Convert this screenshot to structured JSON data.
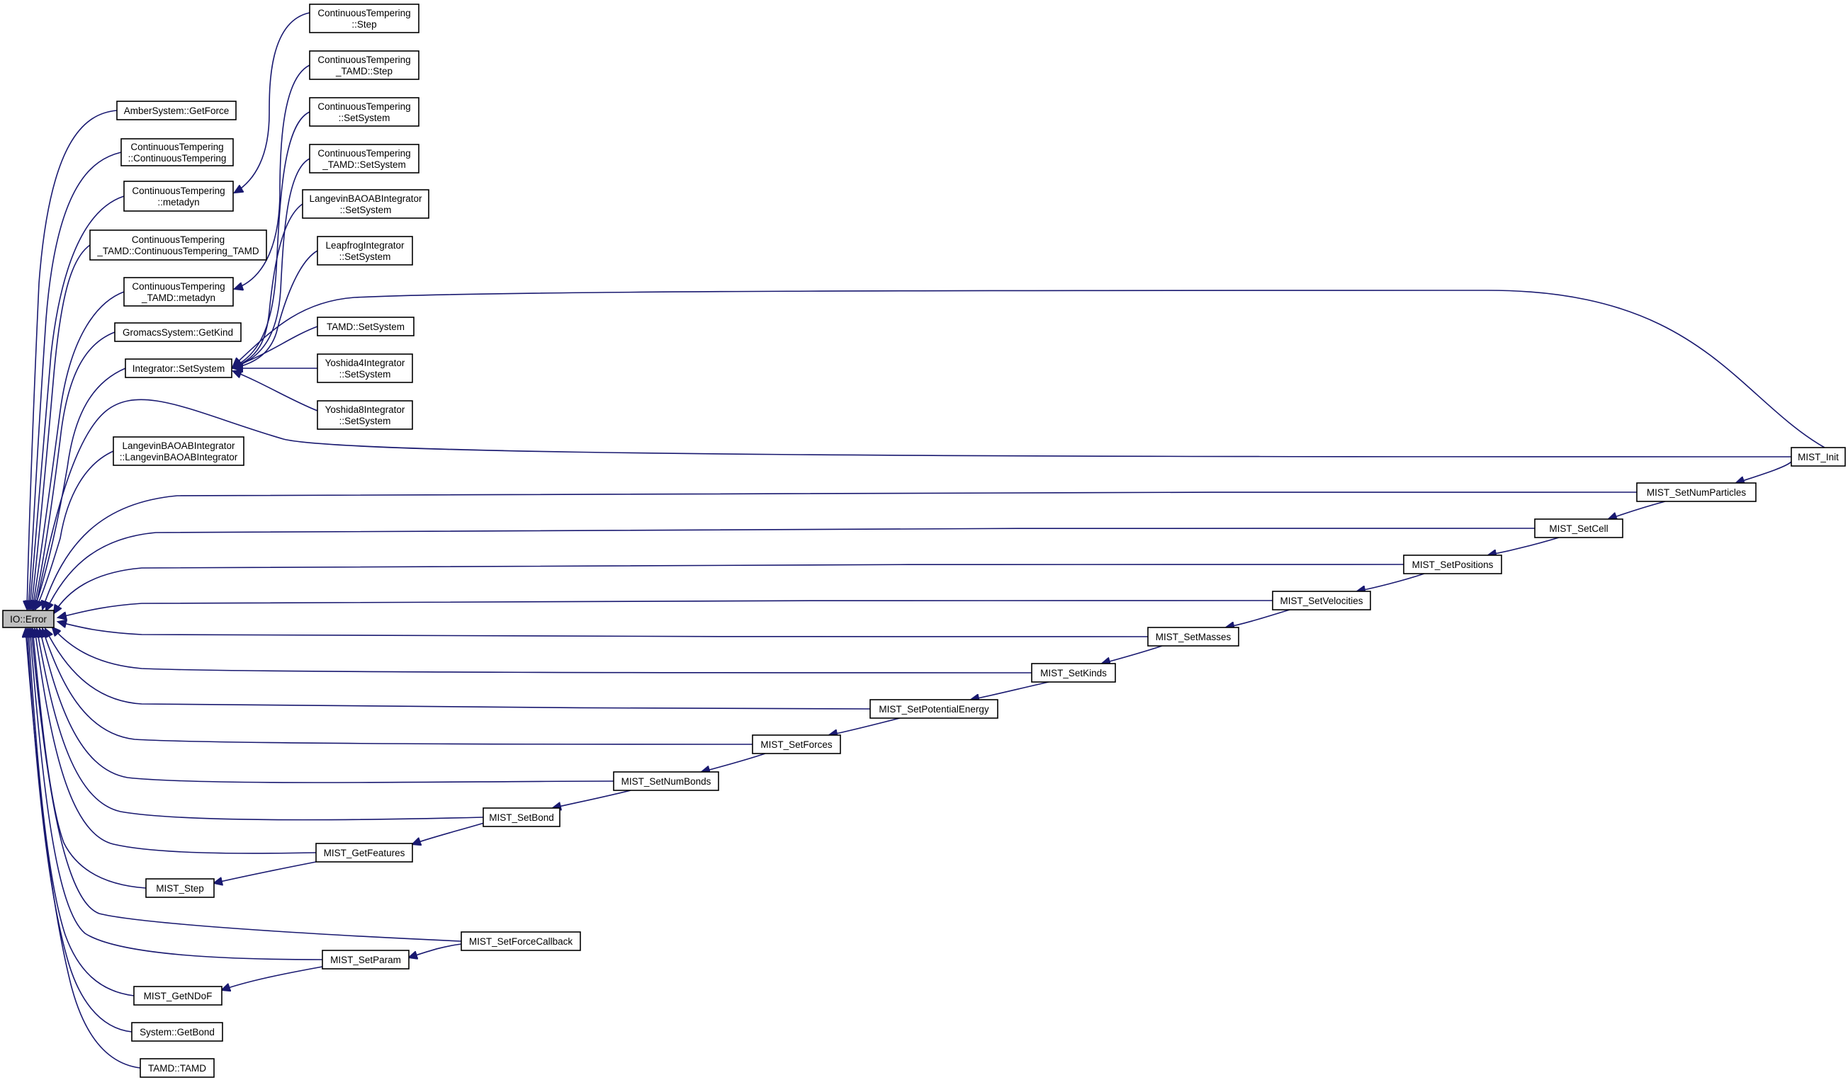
{
  "graph": {
    "edge_color": "#191970",
    "root_fill": "#bfbfbf",
    "node_fill": "#ffffff",
    "nodes": [
      {
        "id": "ioerror",
        "lines": [
          "IO::Error"
        ],
        "root": true
      },
      {
        "id": "amber",
        "lines": [
          "AmberSystem::GetForce"
        ]
      },
      {
        "id": "ct_ct",
        "lines": [
          "ContinuousTempering",
          "::ContinuousTempering"
        ]
      },
      {
        "id": "ct_metadyn",
        "lines": [
          "ContinuousTempering",
          "::metadyn"
        ]
      },
      {
        "id": "ctt_ctt",
        "lines": [
          "ContinuousTempering",
          "_TAMD::ContinuousTempering_TAMD"
        ]
      },
      {
        "id": "ctt_metadyn",
        "lines": [
          "ContinuousTempering",
          "_TAMD::metadyn"
        ]
      },
      {
        "id": "gromacs",
        "lines": [
          "GromacsSystem::GetKind"
        ]
      },
      {
        "id": "integ",
        "lines": [
          "Integrator::SetSystem"
        ]
      },
      {
        "id": "lbaoab_ctor",
        "lines": [
          "LangevinBAOABIntegrator",
          "::LangevinBAOABIntegrator"
        ]
      },
      {
        "id": "ct_step",
        "lines": [
          "ContinuousTempering",
          "::Step"
        ]
      },
      {
        "id": "ctt_step",
        "lines": [
          "ContinuousTempering",
          "_TAMD::Step"
        ]
      },
      {
        "id": "ct_setsys",
        "lines": [
          "ContinuousTempering",
          "::SetSystem"
        ]
      },
      {
        "id": "ctt_setsys",
        "lines": [
          "ContinuousTempering",
          "_TAMD::SetSystem"
        ]
      },
      {
        "id": "lbaoab_setsys",
        "lines": [
          "LangevinBAOABIntegrator",
          "::SetSystem"
        ]
      },
      {
        "id": "leapfrog",
        "lines": [
          "LeapfrogIntegrator",
          "::SetSystem"
        ]
      },
      {
        "id": "tamd_setsys",
        "lines": [
          "TAMD::SetSystem"
        ]
      },
      {
        "id": "yosh4",
        "lines": [
          "Yoshida4Integrator",
          "::SetSystem"
        ]
      },
      {
        "id": "yosh8",
        "lines": [
          "Yoshida8Integrator",
          "::SetSystem"
        ]
      },
      {
        "id": "init",
        "lines": [
          "MIST_Init"
        ]
      },
      {
        "id": "numpart",
        "lines": [
          "MIST_SetNumParticles"
        ]
      },
      {
        "id": "setcell",
        "lines": [
          "MIST_SetCell"
        ]
      },
      {
        "id": "setpos",
        "lines": [
          "MIST_SetPositions"
        ]
      },
      {
        "id": "setvel",
        "lines": [
          "MIST_SetVelocities"
        ]
      },
      {
        "id": "setmass",
        "lines": [
          "MIST_SetMasses"
        ]
      },
      {
        "id": "setkinds",
        "lines": [
          "MIST_SetKinds"
        ]
      },
      {
        "id": "setpe",
        "lines": [
          "MIST_SetPotentialEnergy"
        ]
      },
      {
        "id": "setforces",
        "lines": [
          "MIST_SetForces"
        ]
      },
      {
        "id": "setnumbonds",
        "lines": [
          "MIST_SetNumBonds"
        ]
      },
      {
        "id": "setbond",
        "lines": [
          "MIST_SetBond"
        ]
      },
      {
        "id": "getfeat",
        "lines": [
          "MIST_GetFeatures"
        ]
      },
      {
        "id": "step",
        "lines": [
          "MIST_Step"
        ]
      },
      {
        "id": "setfcb",
        "lines": [
          "MIST_SetForceCallback"
        ]
      },
      {
        "id": "setparam",
        "lines": [
          "MIST_SetParam"
        ]
      },
      {
        "id": "getndof",
        "lines": [
          "MIST_GetNDoF"
        ]
      },
      {
        "id": "sys_getbond",
        "lines": [
          "System::GetBond"
        ]
      },
      {
        "id": "tamd_tamd",
        "lines": [
          "TAMD::TAMD"
        ]
      }
    ]
  }
}
